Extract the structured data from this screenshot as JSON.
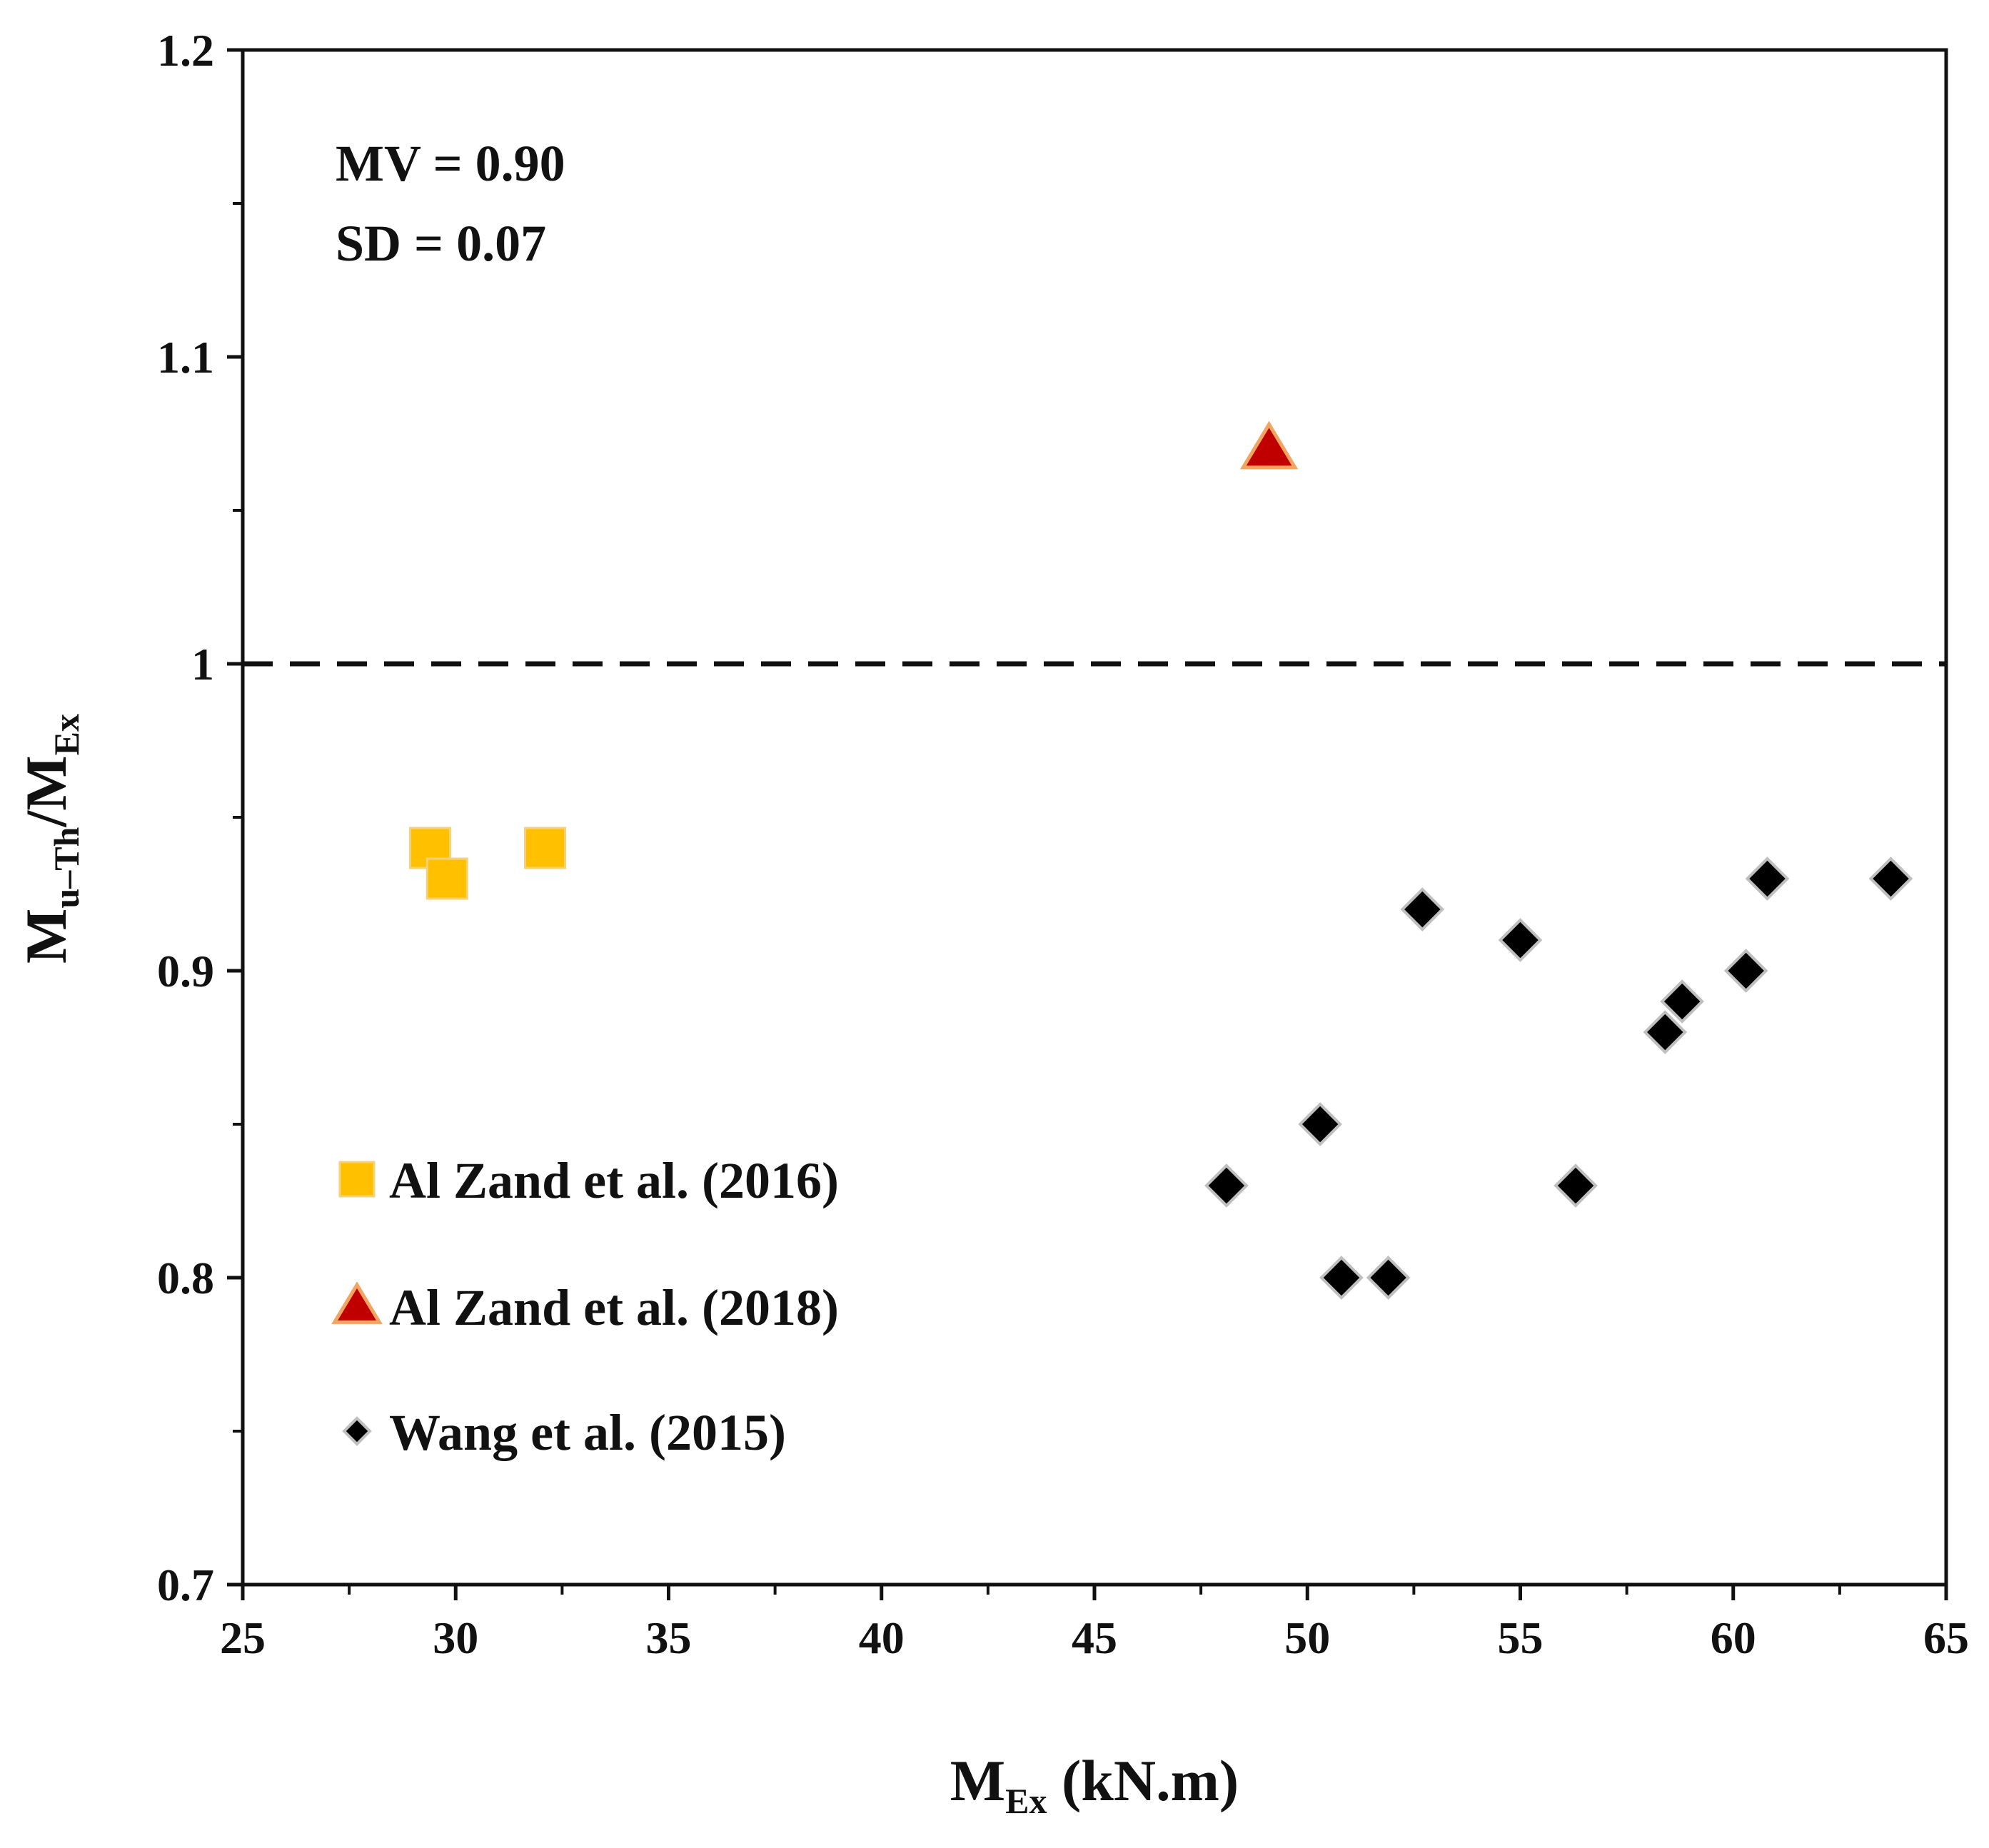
{
  "chart_data": {
    "type": "scatter",
    "xlabel": {
      "main": "M",
      "sub": "Ex",
      "rest": " (kN.m)"
    },
    "ylabel": {
      "main1": "M",
      "sub1": "u–Th",
      "main2": "/M",
      "sub2": "Ex"
    },
    "xlim": [
      25,
      65
    ],
    "ylim": [
      0.7,
      1.2
    ],
    "x_ticks": [
      "25",
      "30",
      "35",
      "40",
      "45",
      "50",
      "55",
      "60",
      "65"
    ],
    "y_ticks": [
      "0.7",
      "0.8",
      "0.9",
      "1",
      "1.1",
      "1.2"
    ],
    "reference_line": {
      "y": 1.0,
      "style": "dashed"
    },
    "annotations": [
      "MV = 0.90",
      "SD = 0.07"
    ],
    "legend_position": "left-lower",
    "series": [
      {
        "name": "Al Zand et al. (2016)",
        "marker": "square",
        "color": "#FFC000",
        "points": [
          [
            29.4,
            0.94
          ],
          [
            29.8,
            0.93
          ],
          [
            32.1,
            0.94
          ]
        ]
      },
      {
        "name": "Al Zand et al. (2018)",
        "marker": "triangle",
        "color": "#C00000",
        "points": [
          [
            49.1,
            1.07
          ]
        ]
      },
      {
        "name": "Wang et al. (2015)",
        "marker": "diamond",
        "color": "#000000",
        "points": [
          [
            48.1,
            0.83
          ],
          [
            50.3,
            0.85
          ],
          [
            50.8,
            0.8
          ],
          [
            51.9,
            0.8
          ],
          [
            52.7,
            0.92
          ],
          [
            55.0,
            0.91
          ],
          [
            56.3,
            0.83
          ],
          [
            58.4,
            0.88
          ],
          [
            58.8,
            0.89
          ],
          [
            60.3,
            0.9
          ],
          [
            60.8,
            0.93
          ],
          [
            63.7,
            0.93
          ]
        ]
      }
    ]
  }
}
